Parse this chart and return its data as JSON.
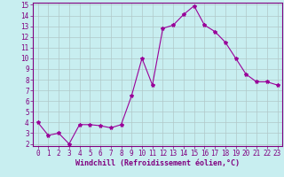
{
  "x": [
    0,
    1,
    2,
    3,
    4,
    5,
    6,
    7,
    8,
    9,
    10,
    11,
    12,
    13,
    14,
    15,
    16,
    17,
    18,
    19,
    20,
    21,
    22,
    23
  ],
  "y": [
    4.0,
    2.8,
    3.0,
    2.0,
    3.8,
    3.8,
    3.7,
    3.5,
    3.8,
    6.5,
    10.0,
    7.5,
    12.8,
    13.1,
    14.1,
    14.9,
    13.1,
    12.5,
    11.5,
    10.0,
    8.5,
    7.8,
    7.8,
    7.5
  ],
  "bg_color": "#c8eef0",
  "line_color": "#990099",
  "marker": "*",
  "marker_size": 3,
  "ylim": [
    2,
    15
  ],
  "xlim": [
    -0.5,
    23.5
  ],
  "yticks": [
    2,
    3,
    4,
    5,
    6,
    7,
    8,
    9,
    10,
    11,
    12,
    13,
    14,
    15
  ],
  "xticks": [
    0,
    1,
    2,
    3,
    4,
    5,
    6,
    7,
    8,
    9,
    10,
    11,
    12,
    13,
    14,
    15,
    16,
    17,
    18,
    19,
    20,
    21,
    22,
    23
  ],
  "xlabel": "Windchill (Refroidissement éolien,°C)",
  "grid_color": "#b0c8c8",
  "font_color": "#800080",
  "font_family": "monospace",
  "tick_fontsize": 5.5,
  "xlabel_fontsize": 6.0
}
